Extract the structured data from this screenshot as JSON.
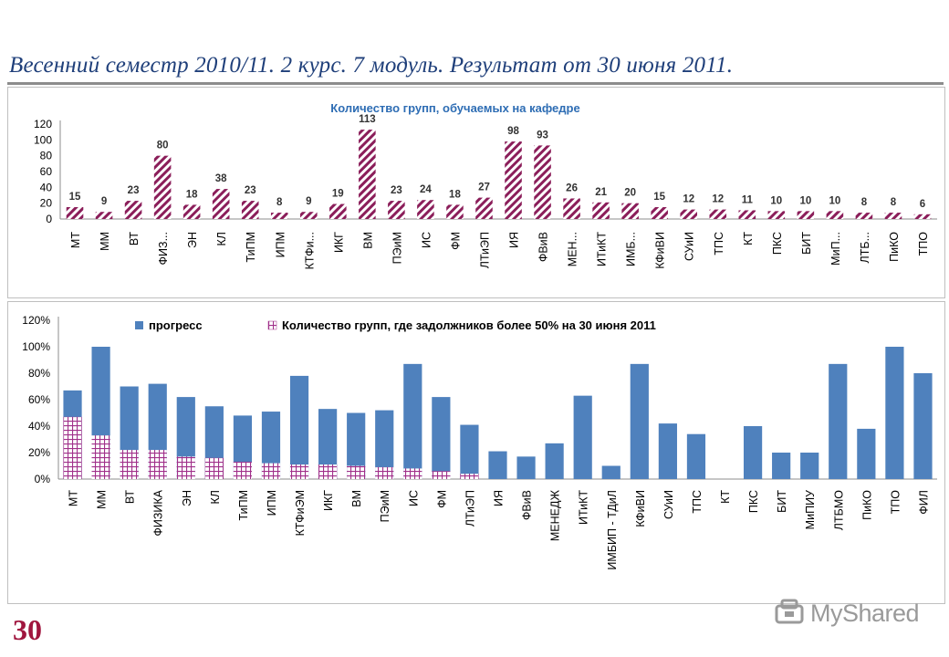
{
  "slide": {
    "title": "Весенний семестр 2010/11.   2 курс.  7 модуль. Результат от 30 июня 2011.",
    "page_number": "30",
    "watermark": "MyShared"
  },
  "colors": {
    "title": "#1f3f7a",
    "hatch": "#8b1e5a",
    "bar_blue": "#4f81bd",
    "grid_pink": "#a0308a",
    "chart1_title": "#2e6db4"
  },
  "chart_data": [
    {
      "type": "bar",
      "title": "Количество групп, обучаемых на кафедре",
      "categories": [
        "МТ",
        "ММ",
        "ВТ",
        "ФИЗ...",
        "ЭН",
        "КЛ",
        "ТиПМ",
        "ИПМ",
        "КТФи...",
        "ИКГ",
        "ВМ",
        "ПЭиМ",
        "ИС",
        "ФМ",
        "ЛТиЭП",
        "ИЯ",
        "ФВиВ",
        "МЕН...",
        "ИТиКТ",
        "ИМБ...",
        "КФиВИ",
        "СУиИ",
        "ТПС",
        "КТ",
        "ПКС",
        "БИТ",
        "МиП...",
        "ЛТБ...",
        "ПиКО",
        "ТПО"
      ],
      "values": [
        15,
        9,
        23,
        80,
        18,
        38,
        23,
        8,
        9,
        19,
        113,
        23,
        24,
        18,
        27,
        98,
        93,
        26,
        21,
        20,
        15,
        12,
        12,
        11,
        10,
        10,
        10,
        8,
        8,
        6
      ],
      "ylim": [
        0,
        120
      ],
      "yticks": [
        "0",
        "20",
        "40",
        "60",
        "80",
        "100",
        "120"
      ],
      "pattern": "diagonal-hatch",
      "grid": false
    },
    {
      "type": "bar",
      "categories": [
        "МТ",
        "ММ",
        "ВТ",
        "ФИЗИКА",
        "ЭН",
        "КЛ",
        "ТиПМ",
        "ИПМ",
        "КТФиЭМ",
        "ИКГ",
        "ВМ",
        "ПЭиМ",
        "ИС",
        "ФМ",
        "ЛТиЭП",
        "ИЯ",
        "ФВиВ",
        "МЕНЕДЖ",
        "ИТиКТ",
        "ИМБИП - ТДиЛ",
        "КФиВИ",
        "СУиИ",
        "ТПС",
        "КТ",
        "ПКС",
        "БИТ",
        "МиПИУ",
        "ЛТБМО",
        "ПиКО",
        "ТПО",
        "ФИЛ"
      ],
      "series": [
        {
          "name": "прогресс",
          "color": "#4f81bd",
          "values": [
            0.67,
            1.0,
            0.7,
            0.72,
            0.62,
            0.55,
            0.48,
            0.51,
            0.78,
            0.53,
            0.5,
            0.52,
            0.87,
            0.62,
            0.41,
            0.21,
            0.17,
            0.27,
            0.63,
            0.1,
            0.87,
            0.42,
            0.34,
            0,
            0.4,
            0.2,
            0.2,
            0.87,
            0.38,
            1.0,
            0.8
          ]
        },
        {
          "name": "Количество групп, где задолжников более  50% на 30 июня 2011",
          "color": "#a0308a",
          "pattern": "grid",
          "values": [
            0.47,
            0.33,
            0.22,
            0.22,
            0.17,
            0.16,
            0.13,
            0.12,
            0.11,
            0.11,
            0.1,
            0.09,
            0.08,
            0.06,
            0.04,
            0,
            0,
            0,
            0,
            0,
            0,
            0,
            0,
            0,
            0,
            0,
            0,
            0,
            0,
            0,
            0
          ]
        }
      ],
      "ylim": [
        0,
        1.2
      ],
      "yticks": [
        "0%",
        "20%",
        "40%",
        "60%",
        "80%",
        "100%",
        "120%"
      ],
      "legend_position": "top",
      "grid": false
    }
  ]
}
